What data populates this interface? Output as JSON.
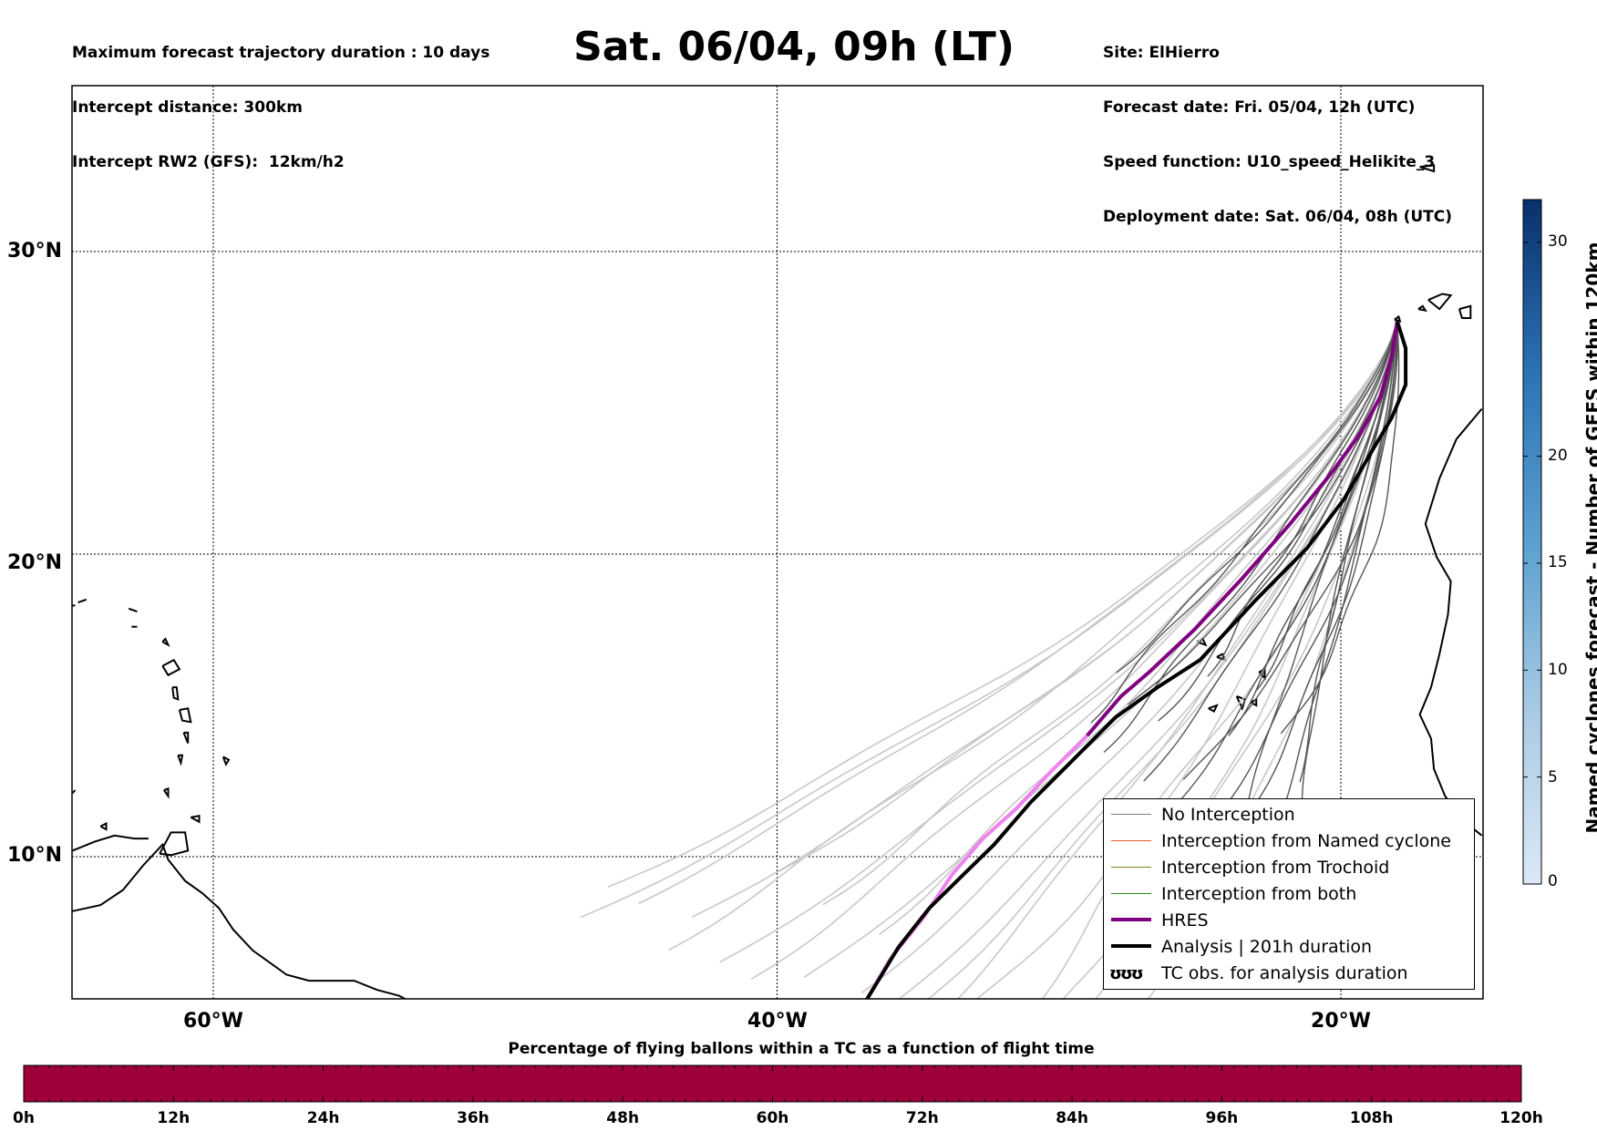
{
  "header": {
    "left_lines": [
      "Maximum forecast trajectory duration : 10 days",
      "Intercept distance: 300km",
      "Intercept RW2 (GFS):  12km/h2"
    ],
    "title": "Sat. 06/04, 09h (LT)",
    "right_lines": [
      "Site: ElHierro",
      "Forecast date: Fri. 05/04, 12h (UTC)",
      "Speed function: U10_speed_Helikite_3",
      "Deployment date: Sat. 06/04, 08h (UTC)"
    ]
  },
  "map": {
    "lon_range": [
      -65,
      -15
    ],
    "lat_range": [
      5,
      34
    ],
    "lat_labels": [
      "30°N",
      "20°N",
      "10°N"
    ],
    "lat_values": [
      30,
      20,
      10
    ],
    "lon_labels": [
      "60°W",
      "40°W",
      "20°W"
    ],
    "lon_values": [
      -60,
      -40,
      -20
    ],
    "release_site": {
      "lon": -18.0,
      "lat": 27.7
    },
    "colors": {
      "no_interception_dark": "#555555",
      "no_interception_light": "#c8c8c8",
      "named_cyclone": "#e8542a",
      "trochoid": "#7f7f1e",
      "both": "#2a8a2a",
      "hres": "#800080",
      "hres_light": "#ee82ee",
      "analysis": "#000000"
    }
  },
  "legend": {
    "items": [
      {
        "label": "No Interception",
        "color": "#7f7f7f",
        "width": 1.5,
        "kind": "line"
      },
      {
        "label": "Interception from Named cyclone",
        "color": "#e8542a",
        "width": 1.5,
        "kind": "line"
      },
      {
        "label": "Interception from Trochoid",
        "color": "#7f7f1e",
        "width": 1.5,
        "kind": "line"
      },
      {
        "label": "Interception from both",
        "color": "#2a8a2a",
        "width": 1.5,
        "kind": "line"
      },
      {
        "label": "HRES",
        "color": "#800080",
        "width": 4,
        "kind": "line"
      },
      {
        "label": "Analysis | 201h duration",
        "color": "#000000",
        "width": 4,
        "kind": "line"
      },
      {
        "label": "TC obs. for analysis duration",
        "color": "#000000",
        "kind": "marker",
        "marker": "ʊʊʊ"
      }
    ]
  },
  "colorbar": {
    "title": "Named cyclones forecast - Number of GEFS within 120km",
    "ticks": [
      0,
      5,
      10,
      15,
      20,
      30
    ],
    "max": 32,
    "color_low": "#d6e4f4",
    "color_high": "#08306b"
  },
  "bottom_bar": {
    "title": "Percentage of flying ballons within a TC as a function of flight time",
    "tick_labels": [
      "0h",
      "12h",
      "24h",
      "36h",
      "48h",
      "60h",
      "72h",
      "84h",
      "96h",
      "108h",
      "120h"
    ],
    "fill_color": "#9e003a"
  }
}
